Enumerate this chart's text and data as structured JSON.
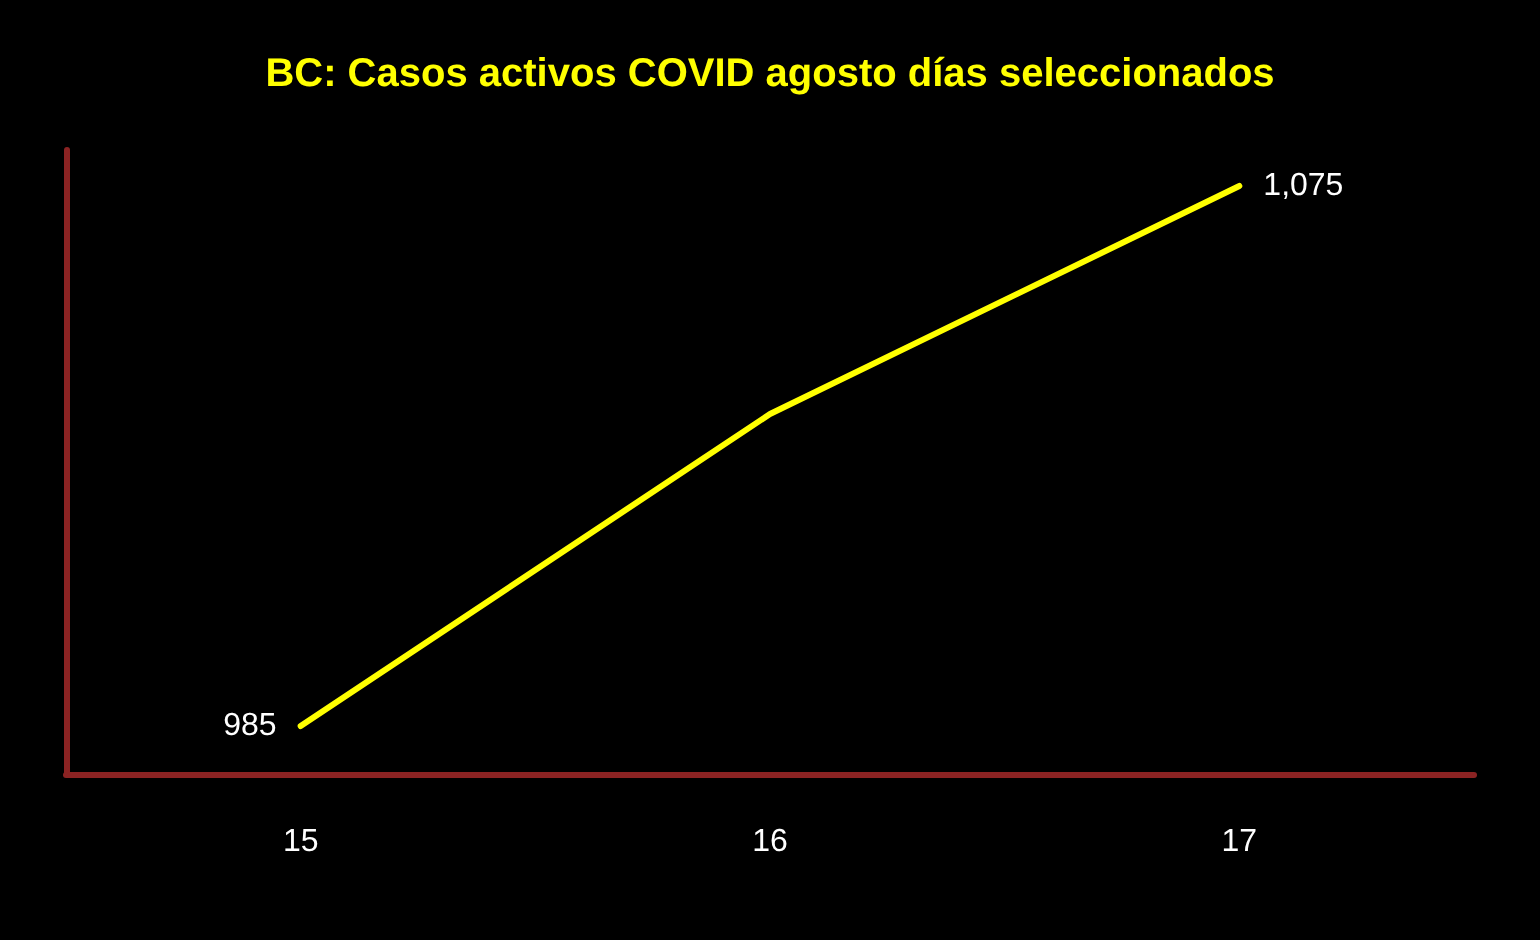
{
  "chart_data": {
    "type": "line",
    "title": "BC: Casos activos COVID agosto días seleccionados",
    "categories": [
      "15",
      "16",
      "17"
    ],
    "series": [
      {
        "color": "#ffff00",
        "values": [
          985,
          1037,
          1075
        ],
        "value_labels": [
          "985",
          null,
          "1,075"
        ]
      }
    ],
    "ylim": [
      977,
      1081
    ],
    "tick_labels": "x",
    "grid": false,
    "marker": "none",
    "line_style": "solid"
  }
}
